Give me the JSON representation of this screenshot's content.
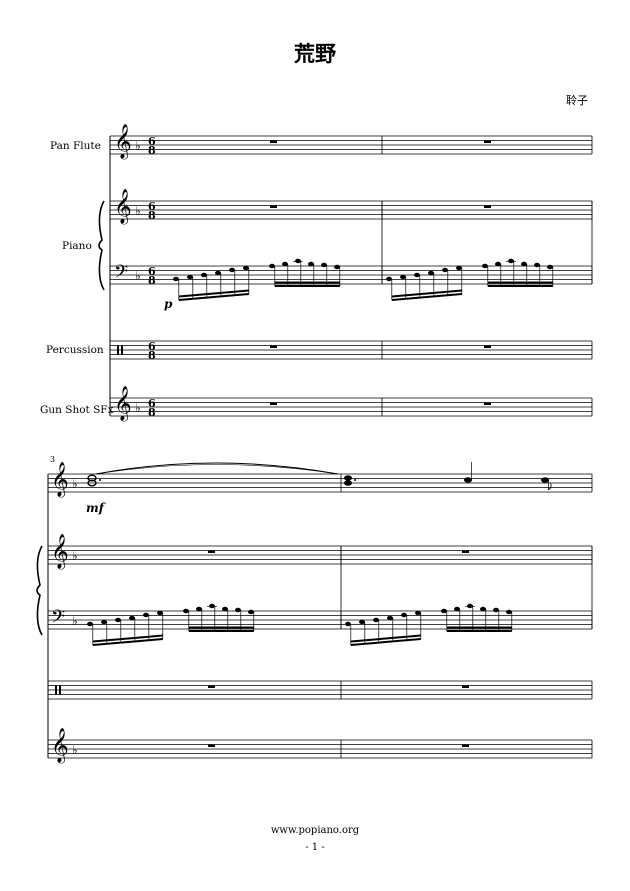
{
  "score": {
    "title": "荒野",
    "composer": "聆子",
    "instruments": [
      "Pan Flute",
      "Piano",
      "Percussion",
      "Gun Shot SFx"
    ],
    "time_signature": {
      "numerator": "6",
      "denominator": "8"
    },
    "key_signature": "F major (1 flat)",
    "measure_number": "3",
    "dynamics": {
      "piano_start": "p",
      "flute_m3": "mf"
    }
  },
  "footer": {
    "url": "www.popiano.org",
    "page": "- 1 -"
  }
}
